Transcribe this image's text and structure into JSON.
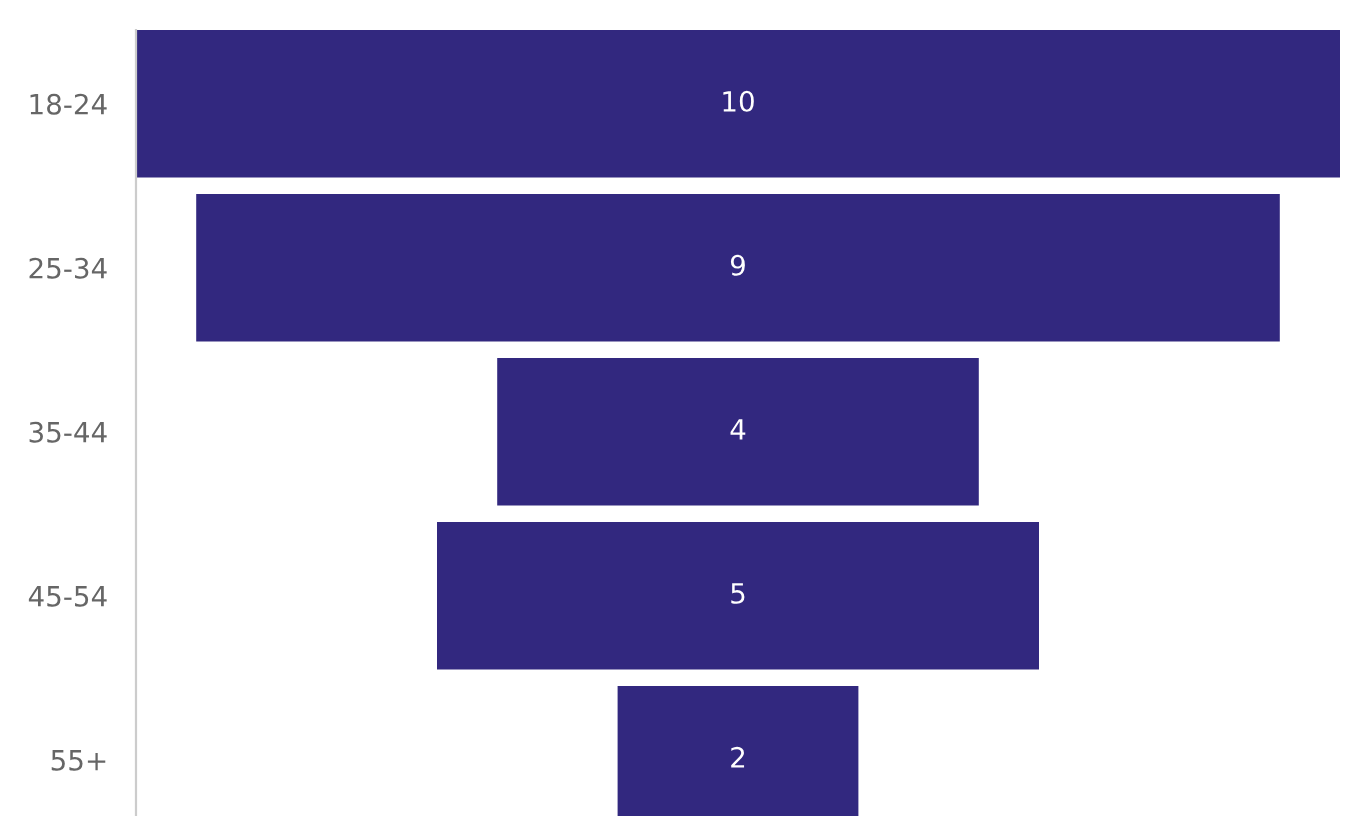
{
  "chart_data": {
    "type": "other",
    "categories": [
      "18-24",
      "25-34",
      "35-44",
      "45-54",
      "55+"
    ],
    "values": [
      10,
      9,
      4,
      5,
      2
    ],
    "color": "#32287f",
    "data_labels": true
  }
}
